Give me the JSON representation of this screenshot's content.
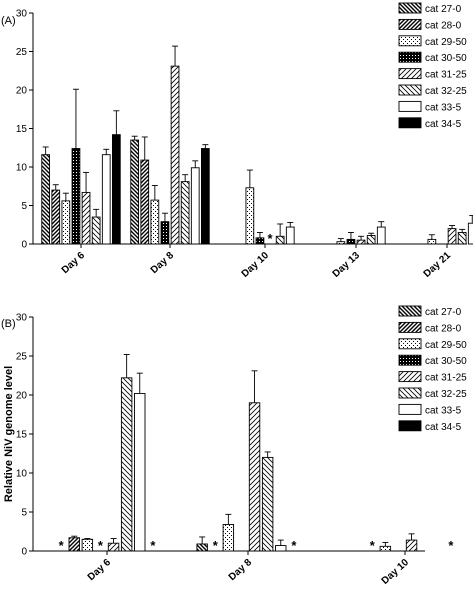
{
  "chart_data": [
    {
      "panel_label": "(A)",
      "type": "bar",
      "ylabel": "",
      "ylim": [
        0,
        30
      ],
      "yticks": [
        0,
        5,
        10,
        15,
        20,
        25,
        30
      ],
      "categories": [
        "Day 6",
        "Day 8",
        "Day 10",
        "Day 13",
        "Day 21"
      ],
      "legend_position": "top-right",
      "series": [
        {
          "name": "cat 27-0",
          "pattern": "diag-back-dense",
          "values": [
            11.6,
            13.5,
            null,
            null,
            null
          ],
          "errors": [
            1.0,
            0.5,
            null,
            null,
            null
          ]
        },
        {
          "name": "cat 28-0",
          "pattern": "diag-fwd-dense",
          "values": [
            7.0,
            10.9,
            null,
            null,
            null
          ],
          "errors": [
            0.7,
            3.0,
            null,
            null,
            null
          ]
        },
        {
          "name": "cat 29-50",
          "pattern": "dots-sparse",
          "values": [
            5.6,
            5.7,
            7.3,
            0.3,
            0.6
          ],
          "errors": [
            1.0,
            1.9,
            2.3,
            0.4,
            0.6
          ]
        },
        {
          "name": "cat 30-50",
          "pattern": "dots-dense",
          "values": [
            12.4,
            2.9,
            0.8,
            0.6,
            null
          ],
          "errors": [
            7.7,
            1.1,
            0.7,
            0.9,
            null
          ]
        },
        {
          "name": "cat 31-25",
          "pattern": "diag-fwd-sparse",
          "values": [
            6.7,
            23.1,
            null,
            0.5,
            2.0
          ],
          "errors": [
            2.6,
            2.6,
            null,
            0.5,
            0.4
          ]
        },
        {
          "name": "cat 32-25",
          "pattern": "diag-back-sparse",
          "values": [
            3.5,
            8.1,
            1.0,
            1.1,
            1.5
          ],
          "errors": [
            1.0,
            0.9,
            1.6,
            0.3,
            0.4
          ]
        },
        {
          "name": "cat 33-5",
          "pattern": "white",
          "values": [
            11.6,
            9.9,
            2.2,
            2.2,
            2.7
          ],
          "errors": [
            0.7,
            0.9,
            0.6,
            0.7,
            1.0
          ]
        },
        {
          "name": "cat 34-5",
          "pattern": "black",
          "values": [
            14.2,
            12.4,
            null,
            null,
            null
          ],
          "errors": [
            3.1,
            0.5,
            null,
            null,
            null
          ]
        }
      ],
      "annotations": [
        {
          "text": "*",
          "category": "Day 10",
          "series": "cat 31-25"
        }
      ]
    },
    {
      "panel_label": "(B)",
      "type": "bar",
      "ylabel": "Relative NiV  genome level",
      "ylim": [
        0,
        30
      ],
      "yticks": [
        0,
        5,
        10,
        15,
        20,
        25,
        30
      ],
      "categories": [
        "Day 6",
        "Day 8",
        "Day 10"
      ],
      "legend_position": "top-right",
      "series": [
        {
          "name": "cat 27-0",
          "pattern": "diag-back-dense",
          "values": [
            null,
            0.9,
            null
          ],
          "errors": [
            null,
            0.9,
            null
          ]
        },
        {
          "name": "cat 28-0",
          "pattern": "diag-fwd-dense",
          "values": [
            1.7,
            null,
            null
          ],
          "errors": [
            0.2,
            null,
            null
          ]
        },
        {
          "name": "cat 29-50",
          "pattern": "dots-sparse",
          "values": [
            1.5,
            3.4,
            0.6
          ],
          "errors": [
            0.1,
            1.3,
            0.5
          ]
        },
        {
          "name": "cat 30-50",
          "pattern": "dots-dense",
          "values": [
            null,
            null,
            null
          ],
          "errors": [
            null,
            null,
            null
          ]
        },
        {
          "name": "cat 31-25",
          "pattern": "diag-fwd-sparse",
          "values": [
            1.0,
            19.0,
            1.4
          ],
          "errors": [
            0.6,
            4.1,
            0.8
          ]
        },
        {
          "name": "cat 32-25",
          "pattern": "diag-back-sparse",
          "values": [
            22.2,
            12.0,
            null
          ],
          "errors": [
            3.0,
            0.7,
            null
          ]
        },
        {
          "name": "cat 33-5",
          "pattern": "white",
          "values": [
            20.2,
            0.7,
            null
          ],
          "errors": [
            2.6,
            0.7,
            null
          ]
        },
        {
          "name": "cat 34-5",
          "pattern": "black",
          "values": [
            null,
            null,
            null
          ],
          "errors": [
            null,
            null,
            null
          ]
        }
      ],
      "annotations": [
        {
          "text": "*",
          "category": "Day 6",
          "series": "cat 27-0"
        },
        {
          "text": "*",
          "category": "Day 6",
          "series": "cat 30-50"
        },
        {
          "text": "*",
          "category": "Day 6",
          "series": "cat 34-5"
        },
        {
          "text": "*",
          "category": "Day 8",
          "series": "cat 28-0"
        },
        {
          "text": "*",
          "category": "Day 8",
          "series": "cat 34-5"
        },
        {
          "text": "*",
          "category": "Day 10",
          "series": "cat 28-0"
        },
        {
          "text": "*",
          "category": "Day 10",
          "series": "cat 34-5"
        }
      ]
    }
  ]
}
